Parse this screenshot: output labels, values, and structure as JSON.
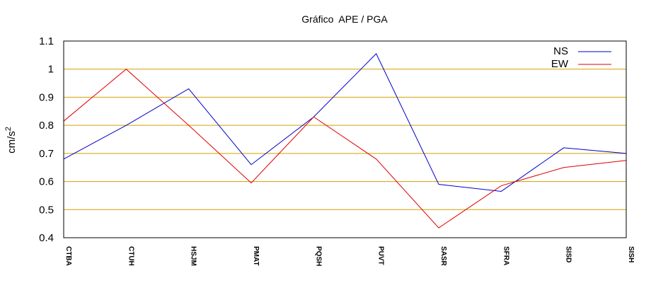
{
  "chart_data": {
    "type": "line",
    "title": "Gráfico  APE / PGA",
    "xlabel": "",
    "ylabel": "cm/s",
    "ylabel_superscript": "2",
    "categories": [
      "CTBA",
      "CTUH",
      "HSJM",
      "PMAT",
      "PQSH",
      "PUVT",
      "SASR",
      "SFRA",
      "SISD",
      "SISH"
    ],
    "series": [
      {
        "name": "NS",
        "color": "#0000cc",
        "values": [
          0.68,
          0.8,
          0.93,
          0.66,
          0.83,
          1.055,
          0.59,
          0.565,
          0.72,
          0.7
        ]
      },
      {
        "name": "EW",
        "color": "#e00000",
        "values": [
          0.815,
          1.0,
          0.8,
          0.595,
          0.83,
          0.68,
          0.435,
          0.585,
          0.65,
          0.675
        ]
      }
    ],
    "ylim": [
      0.4,
      1.1
    ],
    "yticks": [
      "0.4",
      "0.5",
      "0.6",
      "0.7",
      "0.8",
      "0.9",
      "1",
      "1.1"
    ],
    "grid": true,
    "grid_color": "#d4a000",
    "legend_position": "top-right"
  }
}
